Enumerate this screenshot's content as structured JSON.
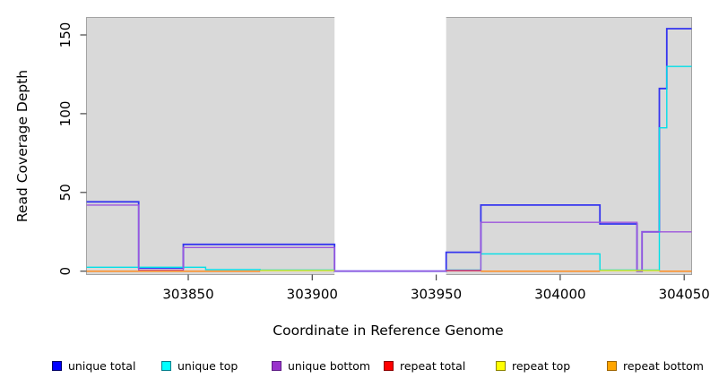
{
  "figure": {
    "background": "#ffffff",
    "plot_background": "#d9d9d9",
    "plot_border_color": "#a3a3a3",
    "x_axis_title": "Coordinate in Reference Genome",
    "y_axis_title": "Read Coverage Depth"
  },
  "legend": {
    "entries": [
      {
        "label": "unique total",
        "fill": "#0000ff",
        "border": "#000066"
      },
      {
        "label": "unique top",
        "fill": "#00ffff",
        "border": "#007f8c"
      },
      {
        "label": "unique bottom",
        "fill": "#9932cc",
        "border": "#5e1d85"
      },
      {
        "label": "repeat total",
        "fill": "#ff0000",
        "border": "#8c0000"
      },
      {
        "label": "repeat top",
        "fill": "#ffff00",
        "border": "#8c8400"
      },
      {
        "label": "repeat bottom",
        "fill": "#ffa500",
        "border": "#9e6400"
      }
    ]
  },
  "chart_data": {
    "type": "line",
    "subtype": "step-coverage",
    "title": "",
    "xlabel": "Coordinate in Reference Genome",
    "ylabel": "Read Coverage Depth",
    "xlim": [
      303809,
      304053
    ],
    "ylim": [
      0,
      160
    ],
    "x_ticks": [
      303850,
      303900,
      303950,
      304000,
      304050
    ],
    "y_ticks": [
      0,
      50,
      100,
      150
    ],
    "grid": false,
    "legend_position": "bottom",
    "plot_bg": "#d9d9d9",
    "gap_band": {
      "x_start": 303909,
      "x_end": 303954,
      "color": "#ffffff"
    },
    "series": [
      {
        "name": "unique total",
        "color": "#3535ef",
        "width": 1.8,
        "steps": [
          [
            303809,
            44
          ],
          [
            303830,
            2
          ],
          [
            303848,
            17
          ],
          [
            303909,
            0
          ],
          [
            303954,
            12
          ],
          [
            303968,
            42
          ],
          [
            304016,
            30
          ],
          [
            304031,
            0
          ],
          [
            304033,
            25
          ],
          [
            304040,
            116
          ],
          [
            304043,
            154
          ],
          [
            304053,
            154
          ]
        ]
      },
      {
        "name": "unique top",
        "color": "#00dfe8",
        "width": 1.4,
        "steps": [
          [
            303809,
            2.5
          ],
          [
            303857,
            1
          ],
          [
            303879,
            0.7
          ],
          [
            303909,
            0
          ],
          [
            303954,
            0.7
          ],
          [
            303968,
            11
          ],
          [
            304016,
            0.7
          ],
          [
            304040,
            91
          ],
          [
            304043,
            130
          ],
          [
            304053,
            130
          ]
        ]
      },
      {
        "name": "unique bottom",
        "color": "#9d55dd",
        "width": 1.4,
        "steps": [
          [
            303809,
            42
          ],
          [
            303830,
            0.5
          ],
          [
            303848,
            15
          ],
          [
            303909,
            0
          ],
          [
            303954,
            0.5
          ],
          [
            303968,
            31
          ],
          [
            304031,
            0
          ],
          [
            304033,
            25
          ],
          [
            304053,
            25
          ]
        ]
      },
      {
        "name": "repeat total",
        "color": "#dc3657",
        "width": 1.3,
        "steps": [
          [
            303830,
            0.3
          ],
          [
            303848,
            null
          ],
          [
            303954,
            0.3
          ],
          [
            303968,
            null
          ]
        ]
      },
      {
        "name": "repeat top",
        "color": "#f0e500",
        "width": 1.3,
        "steps": [
          [
            303879,
            0.4
          ],
          [
            303909,
            null
          ],
          [
            304016,
            0.4
          ],
          [
            304040,
            null
          ]
        ]
      },
      {
        "name": "repeat bottom",
        "color": "#ff8c1e",
        "width": 1.5,
        "steps": [
          [
            303809,
            0
          ],
          [
            303879,
            null
          ],
          [
            303968,
            0
          ],
          [
            304016,
            null
          ],
          [
            304040,
            0
          ],
          [
            304053,
            0
          ]
        ]
      }
    ]
  }
}
